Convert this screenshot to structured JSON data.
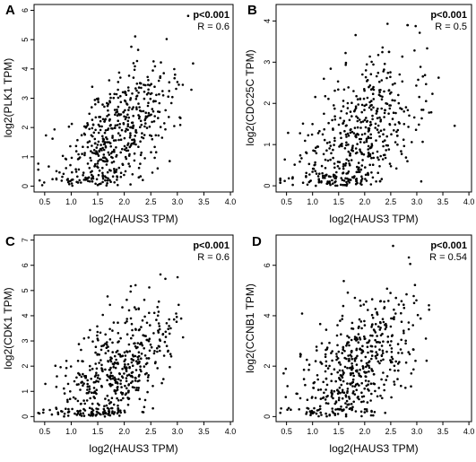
{
  "chart_data": [
    {
      "panel": "A",
      "type": "scatter",
      "xlabel": "log2(HAUS3 TPM)",
      "ylabel": "log2(PLK1 TPM)",
      "pvalue_text": "p<0.001",
      "r_text": "R = 0.6",
      "xlim": [
        0.3,
        4.05
      ],
      "ylim": [
        -0.2,
        6.2
      ],
      "xticks": [
        0.5,
        1.0,
        1.5,
        2.0,
        2.5,
        3.0,
        3.5,
        4.0
      ],
      "yticks": [
        0,
        1,
        2,
        3,
        4,
        5,
        6
      ],
      "n_points": 520,
      "r": 0.6,
      "x_mean": 1.85,
      "x_sd": 0.55,
      "y_base": 0.2,
      "y_slope": 1.25,
      "y_noise": 0.95,
      "y_min": 0.0,
      "y_max": 5.9,
      "seed": 11
    },
    {
      "panel": "B",
      "type": "scatter",
      "xlabel": "log2(HAUS3 TPM)",
      "ylabel": "log2(CDC25C TPM)",
      "pvalue_text": "p<0.001",
      "r_text": "R = 0.5",
      "xlim": [
        0.3,
        4.05
      ],
      "ylim": [
        -0.15,
        4.4
      ],
      "xticks": [
        0.5,
        1.0,
        1.5,
        2.0,
        2.5,
        3.0,
        3.5,
        4.0
      ],
      "yticks": [
        0,
        1,
        2,
        3,
        4
      ],
      "n_points": 520,
      "r": 0.5,
      "x_mean": 1.85,
      "x_sd": 0.55,
      "y_base": 0.0,
      "y_slope": 0.85,
      "y_noise": 0.85,
      "y_min": 0.0,
      "y_max": 4.2,
      "seed": 23
    },
    {
      "panel": "C",
      "type": "scatter",
      "xlabel": "log2(HAUS3 TPM)",
      "ylabel": "log2(CDK1 TPM)",
      "pvalue_text": "p<0.001",
      "r_text": "R = 0.6",
      "xlim": [
        0.3,
        4.05
      ],
      "ylim": [
        -0.2,
        7.2
      ],
      "xticks": [
        0.5,
        1.0,
        1.5,
        2.0,
        2.5,
        3.0,
        3.5,
        4.0
      ],
      "yticks": [
        0,
        1,
        2,
        3,
        4,
        5,
        6,
        7
      ],
      "n_points": 520,
      "r": 0.6,
      "x_mean": 1.85,
      "x_sd": 0.55,
      "y_base": 0.0,
      "y_slope": 1.45,
      "y_noise": 1.15,
      "y_min": 0.0,
      "y_max": 6.6,
      "seed": 37
    },
    {
      "panel": "D",
      "type": "scatter",
      "xlabel": "log2(HAUS3 TPM)",
      "ylabel": "log2(CCNB1 TPM)",
      "pvalue_text": "p<0.001",
      "r_text": "R = 0.54",
      "xlim": [
        0.3,
        4.05
      ],
      "ylim": [
        -0.2,
        7.2
      ],
      "xticks": [
        0.5,
        1.0,
        1.5,
        2.0,
        2.5,
        3.0,
        3.5,
        4.0
      ],
      "yticks": [
        0,
        2,
        4,
        6
      ],
      "n_points": 520,
      "r": 0.54,
      "x_mean": 1.85,
      "x_sd": 0.55,
      "y_base": 0.1,
      "y_slope": 1.5,
      "y_noise": 1.25,
      "y_min": 0.0,
      "y_max": 6.9,
      "seed": 51
    }
  ]
}
